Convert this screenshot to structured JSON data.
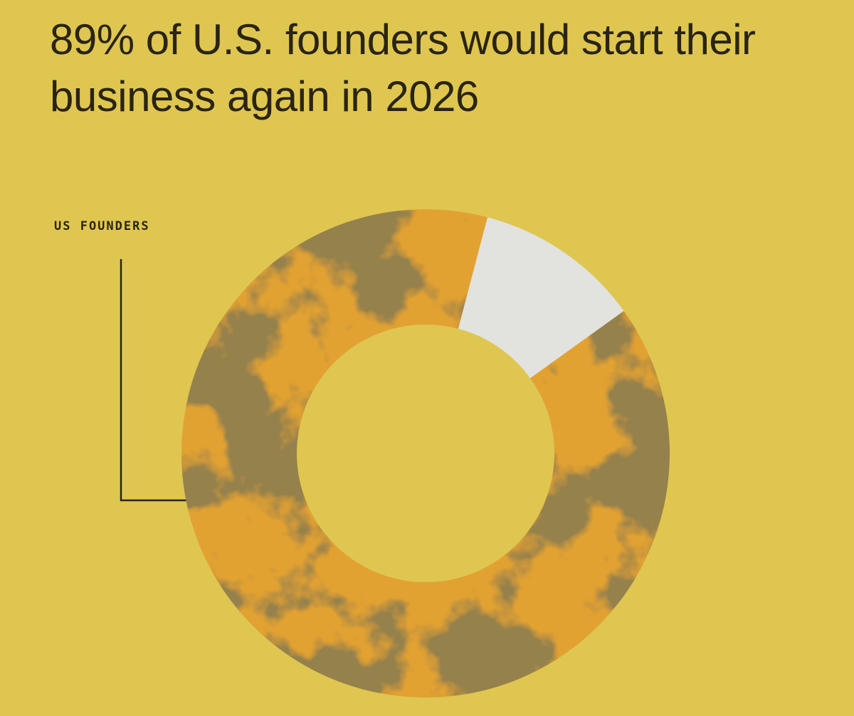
{
  "chart_data": {
    "type": "pie",
    "title": "89% of U.S. founders would start their business again in 2026",
    "legend_label": "US FOUNDERS",
    "values": [
      89,
      11
    ],
    "colors": [
      "#e2a233",
      "#e2e2df"
    ]
  }
}
